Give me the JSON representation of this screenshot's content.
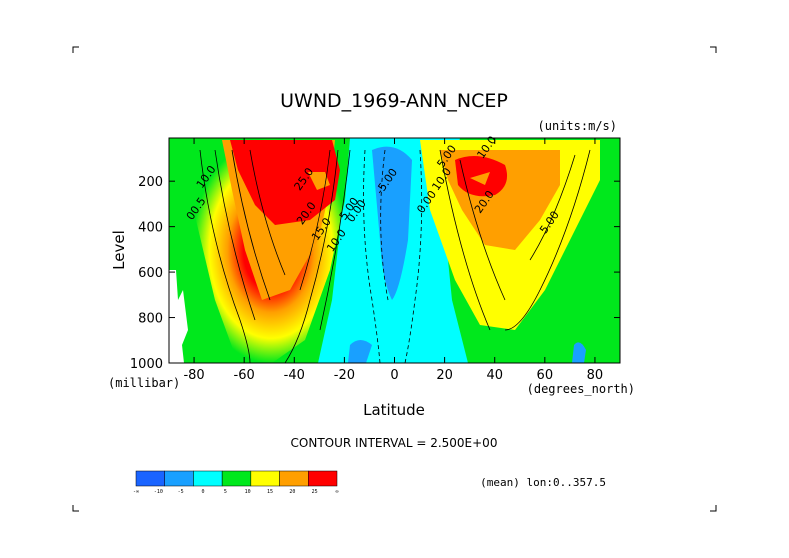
{
  "chart_data": {
    "type": "heatmap",
    "title": "UWND_1969-ANN_NCEP",
    "units": "(units:m/s)",
    "xlabel": "Latitude",
    "ylabel": "Level",
    "x_units_label": "(degrees_north)",
    "y_units_label": "(millibar)",
    "xlim": [
      -90,
      90
    ],
    "ylim": [
      1000,
      10
    ],
    "x_ticks": [
      -80,
      -60,
      -40,
      -20,
      0,
      20,
      40,
      60,
      80
    ],
    "y_ticks": [
      200,
      400,
      600,
      800,
      1000
    ],
    "contour_interval_text": "CONTOUR INTERVAL = 2.500E+00",
    "mean_text": "(mean) lon:0..357.5",
    "contour_labels": [
      {
        "text": "25.0",
        "x": -35,
        "y": 200
      },
      {
        "text": "20.0",
        "x": -34,
        "y": 350
      },
      {
        "text": "15.0",
        "x": -28,
        "y": 420
      },
      {
        "text": "10.0",
        "x": -22,
        "y": 470
      },
      {
        "text": "5.00",
        "x": -17,
        "y": 330
      },
      {
        "text": "0.00",
        "x": -14,
        "y": 340
      },
      {
        "text": "10.0",
        "x": -74,
        "y": 190
      },
      {
        "text": "00.5",
        "x": -78,
        "y": 330
      },
      {
        "text": "-5.00",
        "x": -2,
        "y": 210
      },
      {
        "text": "0.00",
        "x": 14,
        "y": 300
      },
      {
        "text": "10.0",
        "x": 20,
        "y": 200
      },
      {
        "text": "5.00",
        "x": 22,
        "y": 100
      },
      {
        "text": "20.0",
        "x": 37,
        "y": 300
      },
      {
        "text": "10.0",
        "x": 38,
        "y": 60
      },
      {
        "text": "5.00",
        "x": 63,
        "y": 390
      }
    ],
    "colorbar": {
      "colors": [
        "#1a64ff",
        "#19a0ff",
        "#00ffff",
        "#00e81c",
        "#ffff00",
        "#ff9f00",
        "#ff0000"
      ],
      "tick_labels": [
        "-∞",
        "-10",
        "-5",
        "0",
        "5",
        "10",
        "15",
        "20",
        "25",
        "∞"
      ]
    }
  }
}
